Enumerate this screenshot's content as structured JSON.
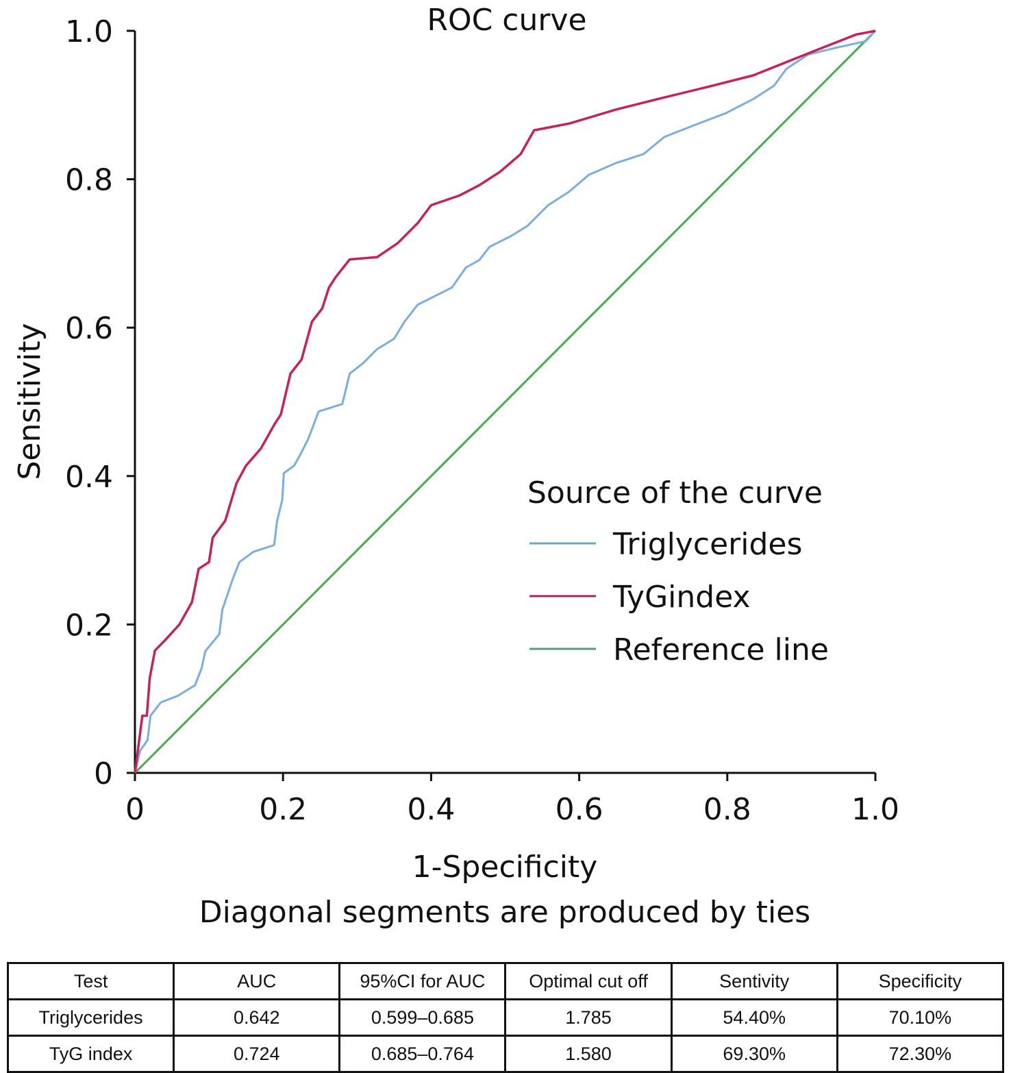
{
  "chart_data": {
    "type": "line",
    "title": "ROC curve",
    "xlabel": "1-Specificity",
    "ylabel": "Sensitivity",
    "note": "Diagonal segments are produced by ties",
    "xlim": [
      0,
      1
    ],
    "ylim": [
      0,
      1
    ],
    "x_ticks": [
      "0",
      "0.2",
      "0.4",
      "0.6",
      "0.8",
      "1.0"
    ],
    "y_ticks": [
      "0",
      "0.2",
      "0.4",
      "0.6",
      "0.8",
      "1.0"
    ],
    "grid": false,
    "legend": {
      "title": "Source of the curve",
      "position": "right"
    },
    "series": [
      {
        "name": "Triglycerides",
        "color": "#7aaee0",
        "legend_color": "#6aaabb",
        "x": [
          0,
          0.007,
          0.017,
          0.021,
          0.035,
          0.058,
          0.081,
          0.09,
          0.095,
          0.114,
          0.118,
          0.132,
          0.141,
          0.16,
          0.188,
          0.192,
          0.199,
          0.201,
          0.215,
          0.225,
          0.234,
          0.248,
          0.28,
          0.29,
          0.308,
          0.327,
          0.35,
          0.364,
          0.382,
          0.4,
          0.428,
          0.447,
          0.465,
          0.479,
          0.507,
          0.53,
          0.558,
          0.586,
          0.613,
          0.65,
          0.687,
          0.715,
          0.761,
          0.798,
          0.835,
          0.863,
          0.88,
          0.909,
          0.946,
          0.987,
          1
        ],
        "y": [
          0,
          0.03,
          0.044,
          0.077,
          0.095,
          0.104,
          0.118,
          0.141,
          0.164,
          0.187,
          0.22,
          0.261,
          0.284,
          0.298,
          0.307,
          0.34,
          0.368,
          0.404,
          0.414,
          0.432,
          0.45,
          0.487,
          0.497,
          0.538,
          0.552,
          0.571,
          0.585,
          0.608,
          0.631,
          0.64,
          0.654,
          0.681,
          0.691,
          0.709,
          0.723,
          0.737,
          0.765,
          0.783,
          0.806,
          0.822,
          0.834,
          0.857,
          0.875,
          0.889,
          0.908,
          0.926,
          0.949,
          0.968,
          0.977,
          0.986,
          1
        ]
      },
      {
        "name": "TyGindex",
        "color": "#c8205a",
        "legend_color": "#b02060",
        "x": [
          0,
          0.01,
          0.016,
          0.02,
          0.027,
          0.04,
          0.06,
          0.077,
          0.086,
          0.1,
          0.105,
          0.122,
          0.137,
          0.15,
          0.17,
          0.188,
          0.197,
          0.21,
          0.225,
          0.239,
          0.253,
          0.262,
          0.271,
          0.29,
          0.327,
          0.355,
          0.382,
          0.4,
          0.438,
          0.465,
          0.493,
          0.521,
          0.539,
          0.586,
          0.65,
          0.706,
          0.78,
          0.835,
          0.88,
          0.928,
          0.974,
          1
        ],
        "y": [
          0,
          0.077,
          0.077,
          0.128,
          0.165,
          0.178,
          0.2,
          0.23,
          0.275,
          0.284,
          0.317,
          0.34,
          0.39,
          0.414,
          0.437,
          0.469,
          0.483,
          0.538,
          0.557,
          0.608,
          0.626,
          0.654,
          0.668,
          0.692,
          0.695,
          0.714,
          0.741,
          0.765,
          0.778,
          0.792,
          0.81,
          0.834,
          0.866,
          0.875,
          0.894,
          0.908,
          0.926,
          0.94,
          0.958,
          0.977,
          0.995,
          1
        ]
      },
      {
        "name": "Reference line",
        "color": "#4aaa50",
        "legend_color": "#5a9a80",
        "x": [
          0,
          1
        ],
        "y": [
          0,
          1
        ]
      }
    ]
  },
  "table": {
    "headers": [
      "Test",
      "AUC",
      "95%CI for AUC",
      "Optimal cut off",
      "Sentivity",
      "Specificity"
    ],
    "rows": [
      [
        "Triglycerides",
        "0.642",
        "0.599–0.685",
        "1.785",
        "54.40%",
        "70.10%"
      ],
      [
        "TyG index",
        "0.724",
        "0.685–0.764",
        "1.580",
        "69.30%",
        "72.30%"
      ]
    ]
  }
}
